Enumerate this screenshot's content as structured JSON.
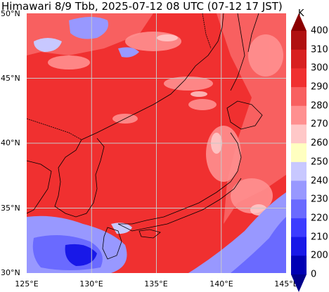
{
  "title": "Himawari 8/9 Tbb, 2025-07-12 08 UTC (07-12 17 JST)",
  "lat_labels": [
    "50°N",
    "45°N",
    "40°N",
    "35°N",
    "30°N"
  ],
  "lon_labels": [
    "125°E",
    "130°E",
    "135°E",
    "140°E",
    "145°E"
  ],
  "colorbar": {
    "unit": "K",
    "ticks": [
      "400",
      "310",
      "300",
      "290",
      "280",
      "270",
      "260",
      "250",
      "240",
      "230",
      "220",
      "210",
      "200",
      "0"
    ],
    "colors": [
      "#8b0000",
      "#b01010",
      "#d82020",
      "#f03030",
      "#f86060",
      "#ff9090",
      "#ffc8c8",
      "#ffffc0",
      "#c8c8ff",
      "#9898ff",
      "#6a6aff",
      "#3c3cff",
      "#1818e8",
      "#0000b4",
      "#00008b"
    ]
  },
  "colors": {
    "warm_land_sea": "#f03030",
    "mid_warm": "#f86060",
    "cloud_light": "#ff9090",
    "cold_cloud": "#6a6aff",
    "coast_line": "#000000",
    "grid": "#c8c8c8"
  }
}
